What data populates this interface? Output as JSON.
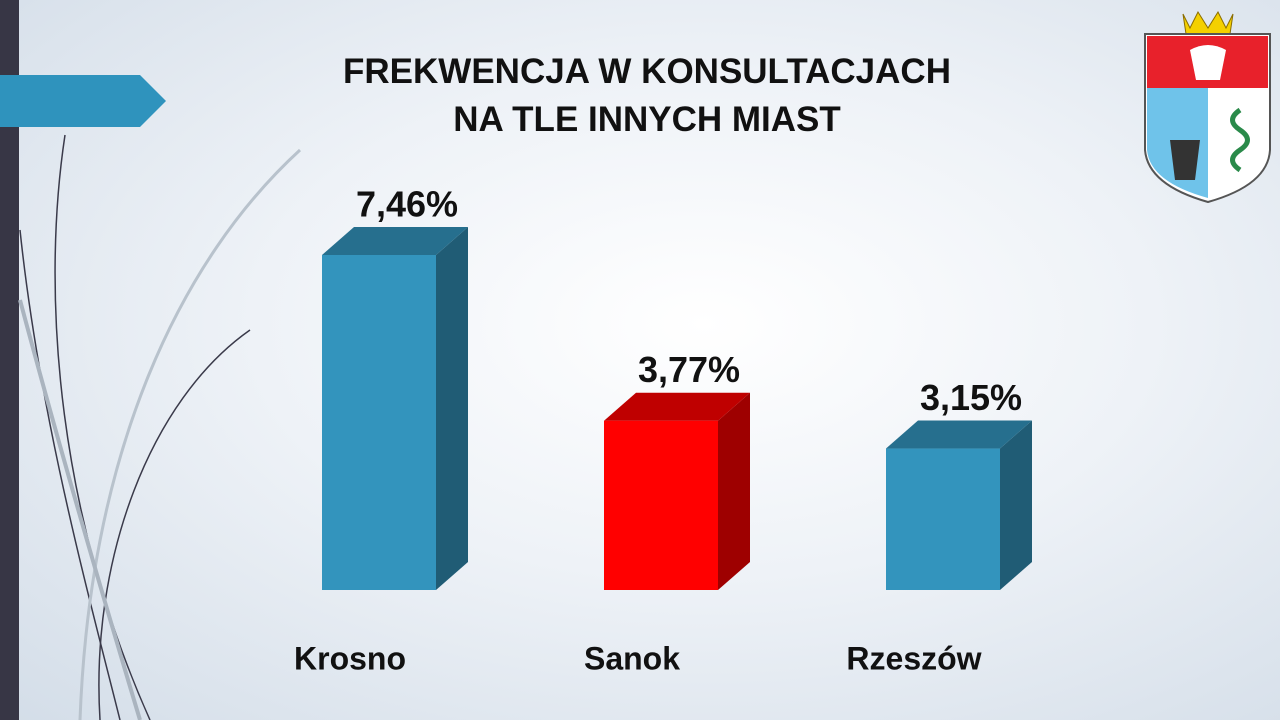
{
  "chart_data": {
    "type": "bar3d",
    "title": "FREKWENCJA W KONSULTACJACH\nNA TLE INNYCH MIAST",
    "categories": [
      "Krosno",
      "Sanok",
      "Rzeszów"
    ],
    "values": [
      7.46,
      3.77,
      3.15
    ],
    "value_labels": [
      "7,46%",
      "3,77%",
      "3,15%"
    ],
    "colors": [
      "#3394bd",
      "#ff0000",
      "#3394bd"
    ]
  }
}
